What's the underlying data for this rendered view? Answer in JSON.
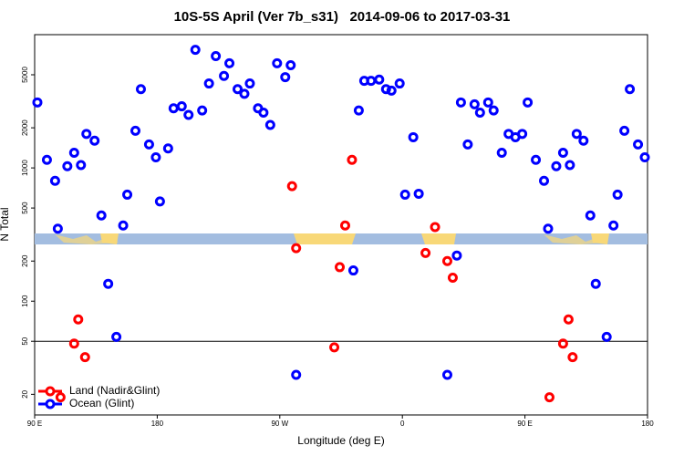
{
  "chart_data": {
    "type": "scatter",
    "title": "10S-5S April (Ver 7b_s31)   2014-09-06 to 2017-03-31",
    "x_label": "Longitude (deg E)",
    "y_label": "N Total",
    "log_y": true,
    "xlim": [
      90,
      540
    ],
    "ylim": [
      14,
      10000
    ],
    "xticks": [
      {
        "value": 90,
        "label": "90 E"
      },
      {
        "value": 180,
        "label": "180"
      },
      {
        "value": 270,
        "label": "90 W"
      },
      {
        "value": 360,
        "label": "0"
      },
      {
        "value": 450,
        "label": "90 E"
      },
      {
        "value": 540,
        "label": "180"
      }
    ],
    "yticks": [
      20,
      50,
      100,
      200,
      500,
      1000,
      2000,
      5000
    ],
    "reference_line": 50,
    "legend": "lower left",
    "series": [
      {
        "name": "Land (Nadir&Glint)",
        "color": "#ff0000",
        "x": [
          109,
          119,
          122,
          127,
          279,
          282,
          310,
          314,
          318,
          323,
          377,
          384,
          393,
          397,
          468,
          478,
          482,
          485
        ],
        "values": [
          19,
          48,
          73,
          38,
          730,
          250,
          45,
          180,
          370,
          1150,
          230,
          360,
          200,
          150,
          19,
          48,
          73,
          38
        ]
      },
      {
        "name": "Ocean (Glint)",
        "color": "#0000ff",
        "x": [
          92,
          99,
          105,
          107,
          114,
          119,
          124,
          128,
          134,
          139,
          144,
          150,
          155,
          158,
          164,
          168,
          174,
          179,
          182,
          188,
          192,
          198,
          203,
          208,
          213,
          218,
          223,
          229,
          233,
          239,
          244,
          248,
          254,
          258,
          263,
          268,
          274,
          278,
          282,
          324,
          328,
          332,
          337,
          343,
          348,
          352,
          358,
          362,
          368,
          372,
          393,
          400,
          403,
          408,
          413,
          417,
          423,
          427,
          433,
          438,
          443,
          448,
          452,
          458,
          464,
          467,
          473,
          478,
          483,
          488,
          493,
          498,
          502,
          510,
          515,
          518,
          523,
          527,
          533,
          538
        ],
        "values": [
          3100,
          1150,
          800,
          350,
          1030,
          1300,
          1050,
          1800,
          1600,
          440,
          135,
          54,
          370,
          630,
          1900,
          3900,
          1500,
          1200,
          560,
          1400,
          2800,
          2900,
          2500,
          7700,
          2700,
          4300,
          6900,
          4900,
          6100,
          3900,
          3600,
          4300,
          2800,
          2600,
          2100,
          6100,
          4800,
          5900,
          28,
          170,
          2700,
          4500,
          4500,
          4600,
          3900,
          3800,
          4300,
          630,
          1700,
          640,
          28,
          220,
          3100,
          1500,
          3000,
          2600,
          3100,
          2700,
          1300,
          1800,
          1700,
          1800,
          3100,
          1150,
          800,
          350,
          1030,
          1300,
          1050,
          1800,
          1600,
          440,
          135,
          54,
          370,
          630,
          1900,
          3900,
          1500,
          1200
        ]
      }
    ]
  }
}
